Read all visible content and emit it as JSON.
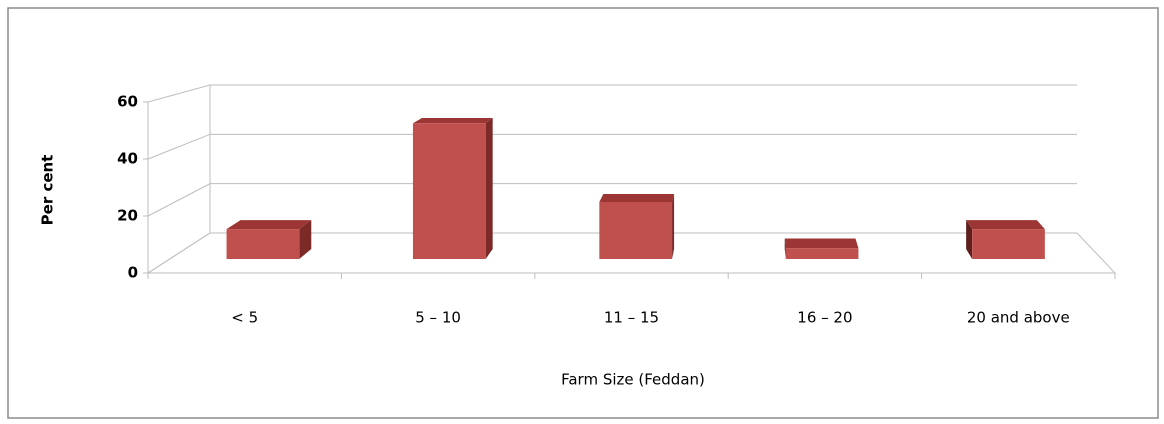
{
  "chart_data": {
    "type": "bar3d",
    "categories": [
      "< 5",
      "5 – 10",
      "11 – 15",
      "16 – 20",
      "20 and above"
    ],
    "values": [
      11,
      50,
      21,
      4,
      11
    ],
    "color": "#c0504d",
    "ylim": [
      0,
      60
    ],
    "yticks": [
      0,
      20,
      40,
      60
    ],
    "grid": true,
    "x_label": "Farm Size (Feddan)",
    "y_label": "Per cent"
  }
}
